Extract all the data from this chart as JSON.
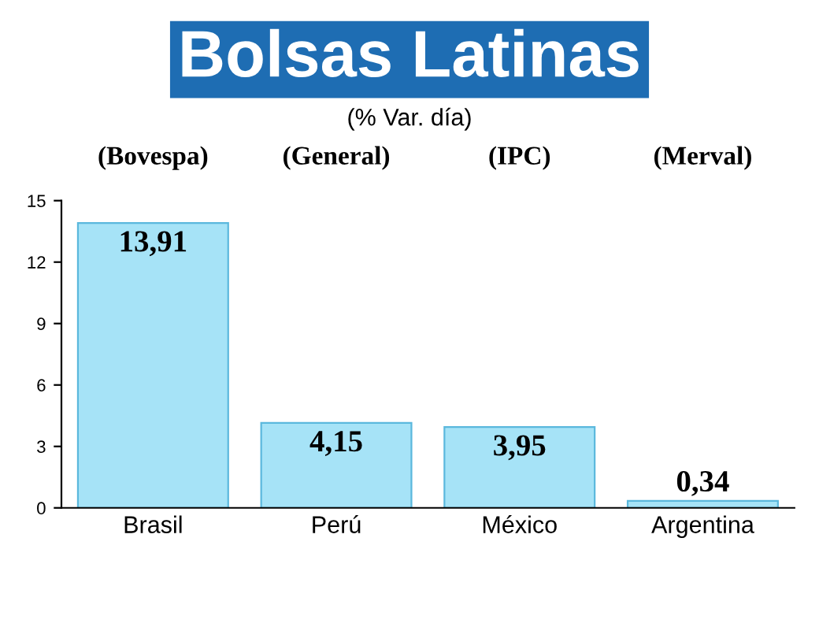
{
  "chart_data": {
    "type": "bar",
    "title": "Bolsas Latinas",
    "subtitle": "(% Var. día)",
    "categories": [
      "Brasil",
      "Perú",
      "México",
      "Argentina"
    ],
    "values": [
      13.91,
      4.15,
      3.95,
      0.34
    ],
    "value_labels": [
      "13,91",
      "4,15",
      "3,95",
      "0,34"
    ],
    "color": "#a6e3f7",
    "annotations": [
      "(Bovespa)",
      "(General)",
      "(IPC)",
      "(Merval)"
    ],
    "ylim": [
      0,
      15
    ],
    "yticks": [
      0,
      3,
      6,
      9,
      12,
      15
    ],
    "grid": false,
    "legend": false
  }
}
